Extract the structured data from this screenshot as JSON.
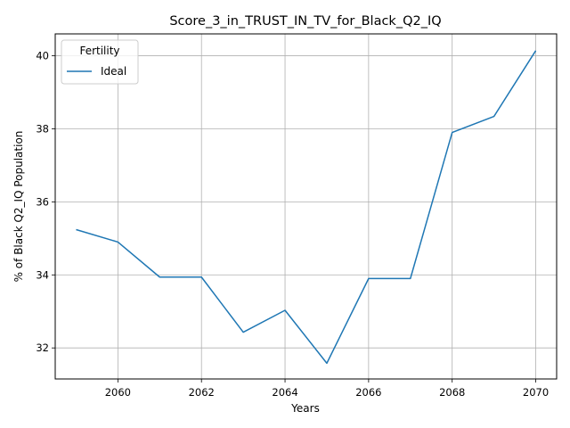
{
  "chart_data": {
    "type": "line",
    "title": "Score_3_in_TRUST_IN_TV_for_Black_Q2_IQ",
    "xlabel": "Years",
    "ylabel": "% of Black Q2_IQ Population",
    "xlim": [
      2058.5,
      2070.5
    ],
    "ylim": [
      31.15,
      40.6
    ],
    "xticks": [
      2060,
      2062,
      2064,
      2066,
      2068,
      2070
    ],
    "yticks": [
      32,
      34,
      36,
      38,
      40
    ],
    "grid": true,
    "legend": {
      "title": "Fertility",
      "placement": "top-left"
    },
    "x": [
      2059,
      2060,
      2061,
      2062,
      2063,
      2064,
      2065,
      2066,
      2067,
      2068,
      2069,
      2070
    ],
    "series": [
      {
        "name": "Ideal",
        "color": "#1f77b4",
        "values": [
          35.24,
          34.9,
          33.94,
          33.94,
          32.43,
          33.03,
          31.58,
          33.9,
          33.9,
          37.9,
          38.34,
          40.14
        ]
      }
    ]
  }
}
